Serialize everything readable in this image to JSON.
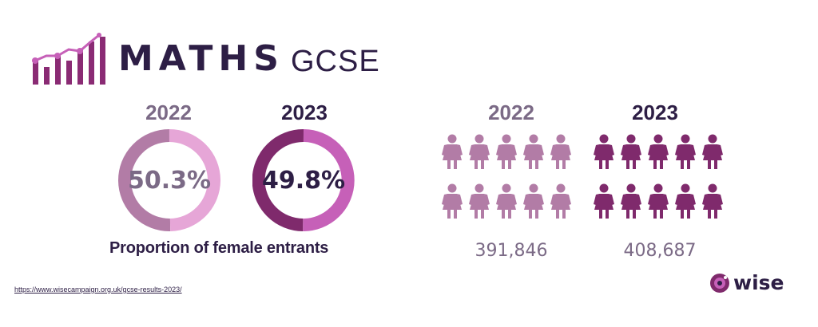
{
  "header": {
    "title": "MATHS",
    "subtitle": "GCSE"
  },
  "colors": {
    "dark_navy": "#2d1e45",
    "grey_purple": "#7b6a86",
    "mauve_2022": "#b27ca6",
    "pink_2022": "#e6a6d7",
    "plum_2023": "#7f2a6c",
    "magenta_2023": "#c660b8"
  },
  "chart_data": [
    {
      "type": "pie",
      "title": "",
      "caption": "Proportion of female entrants",
      "donuts": [
        {
          "year": "2022",
          "value": 50.3,
          "label": "50.3%"
        },
        {
          "year": "2023",
          "value": 49.8,
          "label": "49.8%"
        }
      ]
    },
    {
      "type": "pictogram",
      "title": "",
      "icon": "female-person-icon",
      "groups": [
        {
          "year": "2022",
          "value": 391846,
          "label": "391,846",
          "icons": 10
        },
        {
          "year": "2023",
          "value": 408687,
          "label": "408,687",
          "icons": 10
        }
      ]
    }
  ],
  "footer": {
    "source_url": "https://www.wisecampaign.org.uk/gcse-results-2023/",
    "brand": "wise"
  }
}
